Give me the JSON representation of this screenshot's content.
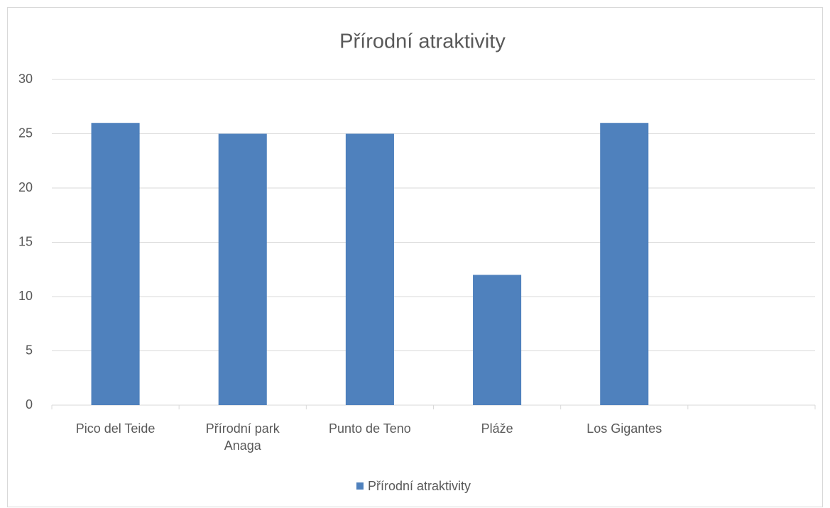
{
  "chart_data": {
    "type": "bar",
    "title": "Přírodní atraktivity",
    "categories": [
      "Pico del Teide",
      "Přírodní park Anaga",
      "Punto de Teno",
      "Pláže",
      "Los Gigantes",
      null
    ],
    "series": [
      {
        "name": "Přírodní atraktivity",
        "color": "#4f81bd",
        "values": [
          26,
          25,
          25,
          12,
          26,
          null
        ]
      }
    ],
    "ylim": [
      0,
      30
    ],
    "yticks": [
      0,
      5,
      10,
      15,
      20,
      25,
      30
    ],
    "grid": true,
    "legend": "bottom"
  }
}
